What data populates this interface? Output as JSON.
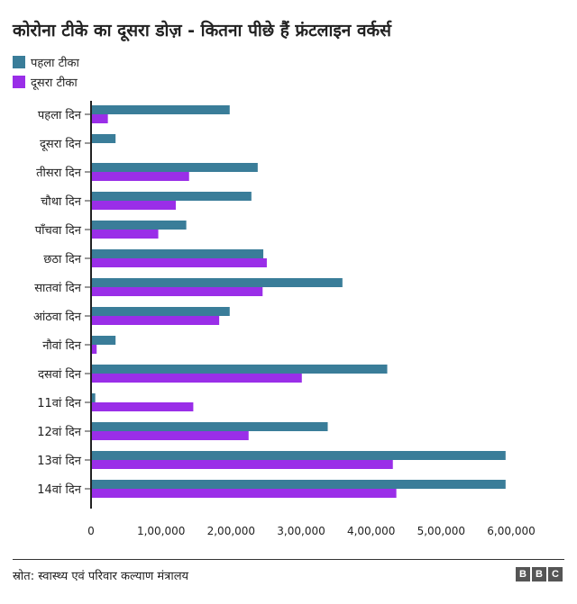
{
  "chart_data": {
    "type": "bar",
    "orientation": "horizontal",
    "title": "कोरोना टीके का दूसरा डोज़ - कितना पीछे हैं फ्रंटलाइन वर्कर्स",
    "categories": [
      "पहला दिन",
      "दूसरा दिन",
      "तीसरा दिन",
      "चौथा दिन",
      "पाँचवा दिन",
      "छठा दिन",
      "सातवां दिन",
      "आंठवा दिन",
      "नौवां दिन",
      "दसवां दिन",
      "11वां दिन",
      "12वां दिन",
      "13वां दिन",
      "14वां दिन"
    ],
    "series": [
      {
        "name": "पहला टीका",
        "color": "#3a7d99",
        "values": [
          198000,
          35000,
          238000,
          229000,
          136000,
          246000,
          359000,
          198000,
          35000,
          423000,
          6000,
          338000,
          592000,
          592000
        ]
      },
      {
        "name": "दूसरा टीका",
        "color": "#9a2ee8",
        "values": [
          24000,
          1000,
          140000,
          121000,
          96000,
          251000,
          245000,
          183000,
          8000,
          301000,
          146000,
          225000,
          431000,
          436000
        ]
      }
    ],
    "xlim": [
      0,
      600000
    ],
    "xticks": [
      0,
      100000,
      200000,
      300000,
      400000,
      500000,
      600000
    ],
    "xtick_labels": [
      "0",
      "1,00,000",
      "2,00,000",
      "3,00,000",
      "4,00,000",
      "5,00,000",
      "6,00,000"
    ],
    "grid": false,
    "legend_position": "top-left"
  },
  "footer": {
    "source": "स्रोत: स्वास्थ्य एवं परिवार कल्याण मंत्रालय",
    "logo": [
      "B",
      "B",
      "C"
    ]
  }
}
